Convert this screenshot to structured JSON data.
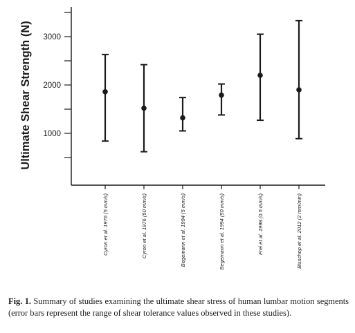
{
  "figure": {
    "caption_label": "Fig. 1.",
    "caption_text": "Summary of studies examining the ultimate shear stress of human lumbar motion segments (error bars represent the range of shear tolerance values observed in these studies)."
  },
  "chart_data": {
    "type": "scatter",
    "ylabel": "Ultimate Shear Strength (N)",
    "yticks": [
      "1000",
      "2000",
      "3000"
    ],
    "ylim": [
      300,
      3500
    ],
    "grid": false,
    "categories": [
      "Cyron et al. 1976 (5 mm/s)",
      "Cyron et al. 1976 (50 mm/s)",
      "Begemann et al. 1994 (5 mm/s)",
      "Begemann et al. 1994 (50 mm/s)",
      "Frei et al. 1998 (0.5 mm/s)",
      "Bisschop et al. 2012 (2 mm/min)"
    ],
    "mean": [
      1860,
      1520,
      1320,
      1790,
      2200,
      1900
    ],
    "err_low": [
      840,
      620,
      1050,
      1380,
      1270,
      890
    ],
    "err_high": [
      2630,
      2420,
      1740,
      2020,
      3050,
      3330
    ],
    "axis_color": "#1a1a1a"
  }
}
